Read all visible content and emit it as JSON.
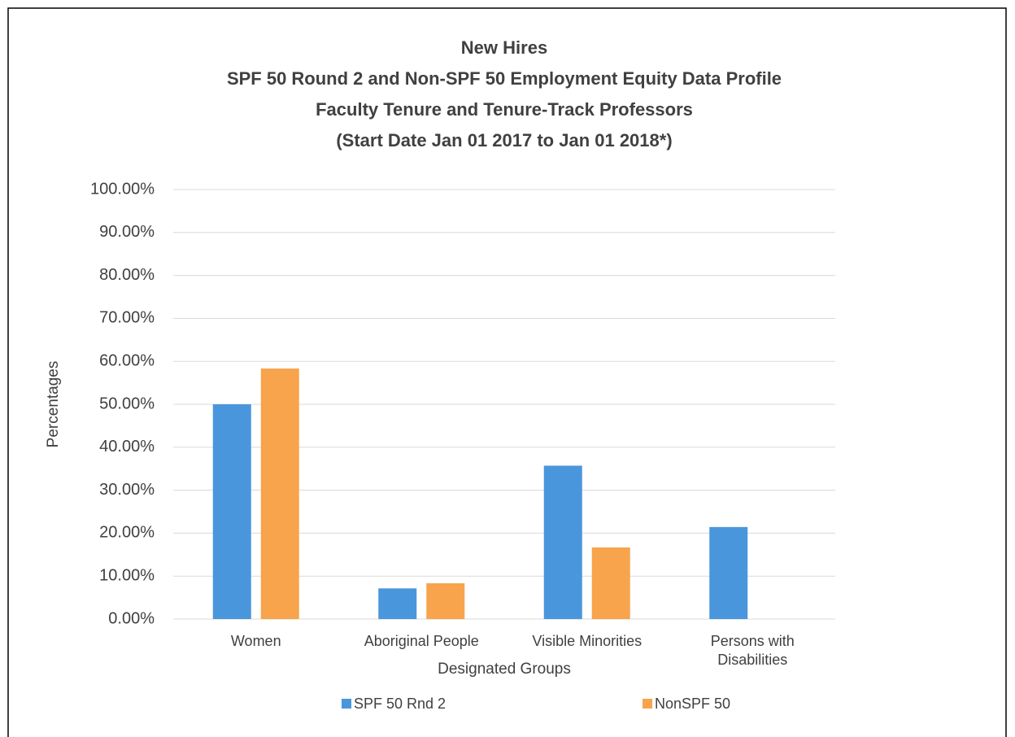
{
  "chart_data": {
    "type": "bar",
    "title": [
      "New Hires",
      "SPF 50 Round 2 and Non-SPF 50 Employment Equity Data Profile",
      "Faculty Tenure and Tenure-Track Professors",
      "(Start Date Jan 01 2017 to Jan 01 2018*)"
    ],
    "x_label": "Designated Groups",
    "y_label": "Percentages",
    "categories": [
      "Women",
      "Aboriginal People",
      "Visible Minorities",
      "Persons with Disabilities"
    ],
    "series": [
      {
        "name": "SPF 50 Rnd 2",
        "color": "#4a96dc",
        "values": [
          50,
          7.14,
          35.71,
          21.43
        ]
      },
      {
        "name": "NonSPF 50",
        "color": "#f7a44c",
        "values": [
          58.33,
          8.33,
          16.67,
          0
        ]
      }
    ],
    "ylim": [
      0,
      100
    ],
    "yticks": [
      {
        "value": 0,
        "label": "0.00%"
      },
      {
        "value": 10,
        "label": "10.00%"
      },
      {
        "value": 20,
        "label": "20.00%"
      },
      {
        "value": 30,
        "label": "30.00%"
      },
      {
        "value": 40,
        "label": "40.00%"
      },
      {
        "value": 50,
        "label": "50.00%"
      },
      {
        "value": 60,
        "label": "60.00%"
      },
      {
        "value": 70,
        "label": "70.00%"
      },
      {
        "value": 80,
        "label": "80.00%"
      },
      {
        "value": 90,
        "label": "90.00%"
      },
      {
        "value": 100,
        "label": "100.00%"
      }
    ],
    "grid": true,
    "legend": "bottom"
  }
}
